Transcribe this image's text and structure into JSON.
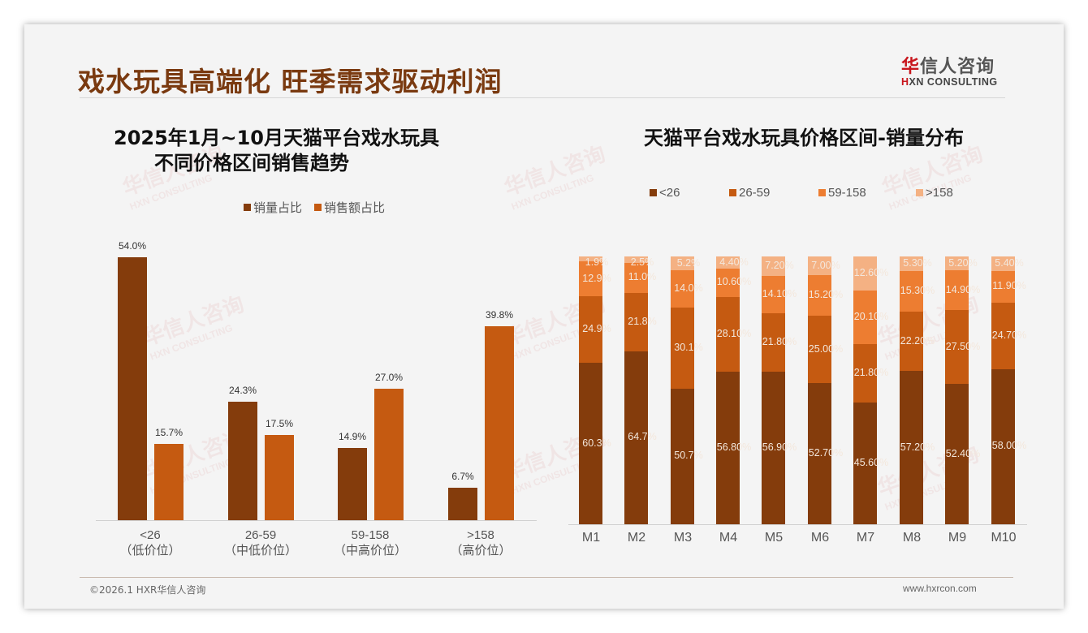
{
  "header": {
    "title": "戏水玩具高端化 旺季需求驱动利润",
    "logo_cn_red": "华",
    "logo_cn_rest": "信人咨询",
    "logo_en_red": "H",
    "logo_en_rest": "XN CONSULTING"
  },
  "watermark": {
    "cn": "华信人咨询",
    "en": "HXN CONSULTING"
  },
  "footer": {
    "copyright": "©2026.1 HXR华信人咨询",
    "website": "www.hxrcon.com"
  },
  "colors": {
    "title": "#7a3a10",
    "lt26": "#843c0c",
    "r26_59": "#c55a11",
    "r59_158": "#ed7d31",
    "gt158": "#f4b183",
    "accent_red": "#c8161d"
  },
  "left_chart": {
    "title_line1": "2025年1月~10月天猫平台戏水玩具",
    "title_line2": "不同价格区间销售趋势",
    "legend": [
      "销量占比",
      "销售额占比"
    ],
    "categories": [
      {
        "range": "<26",
        "sub": "（低价位）",
        "volume_label": "54.0%",
        "sales_label": "15.7%"
      },
      {
        "range": "26-59",
        "sub": "（中低价位）",
        "volume_label": "24.3%",
        "sales_label": "17.5%"
      },
      {
        "range": "59-158",
        "sub": "（中高价位）",
        "volume_label": "14.9%",
        "sales_label": "27.0%"
      },
      {
        "range": ">158",
        "sub": "（高价位）",
        "volume_label": "6.7%",
        "sales_label": "39.8%"
      }
    ]
  },
  "right_chart": {
    "title": "天猫平台戏水玩具价格区间-销量分布",
    "legend": [
      "<26",
      "26-59",
      "59-158",
      ">158"
    ],
    "months": [
      {
        "m": "M1",
        "labels": [
          "60.3%",
          "24.9%",
          "12.9%",
          "1.9%"
        ]
      },
      {
        "m": "M2",
        "labels": [
          "64.7%",
          "21.8%",
          "11.0%",
          "2.5%"
        ]
      },
      {
        "m": "M3",
        "labels": [
          "50.7%",
          "30.1%",
          "14.0%",
          "5.2%"
        ]
      },
      {
        "m": "M4",
        "labels": [
          "56.80%",
          "28.10%",
          "10.60%",
          "4.40%"
        ]
      },
      {
        "m": "M5",
        "labels": [
          "56.90%",
          "21.80%",
          "14.10%",
          "7.20%"
        ]
      },
      {
        "m": "M6",
        "labels": [
          "52.70%",
          "25.00%",
          "15.20%",
          "7.00%"
        ]
      },
      {
        "m": "M7",
        "labels": [
          "45.60%",
          "21.80%",
          "20.10%",
          "12.60%"
        ]
      },
      {
        "m": "M8",
        "labels": [
          "57.20%",
          "22.20%",
          "15.30%",
          "5.30%"
        ]
      },
      {
        "m": "M9",
        "labels": [
          "52.40%",
          "27.50%",
          "14.90%",
          "5.20%"
        ]
      },
      {
        "m": "M10",
        "labels": [
          "58.00%",
          "24.70%",
          "11.90%",
          "5.40%"
        ]
      }
    ]
  },
  "chart_data": [
    {
      "type": "bar",
      "title": "2025年1月~10月天猫平台戏水玩具 不同价格区间销售趋势",
      "categories": [
        "<26（低价位）",
        "26-59（中低价位）",
        "59-158（中高价位）",
        ">158（高价位）"
      ],
      "series": [
        {
          "name": "销量占比",
          "values": [
            54.0,
            24.3,
            14.9,
            6.7
          ],
          "color": "#843c0c"
        },
        {
          "name": "销售额占比",
          "values": [
            15.7,
            17.5,
            27.0,
            39.8
          ],
          "color": "#c55a11"
        }
      ],
      "xlabel": "",
      "ylabel": "",
      "ylim": [
        0,
        60
      ],
      "grid": false,
      "legend_position": "top",
      "unit": "%"
    },
    {
      "type": "bar",
      "stacked": true,
      "title": "天猫平台戏水玩具价格区间-销量分布",
      "categories": [
        "M1",
        "M2",
        "M3",
        "M4",
        "M5",
        "M6",
        "M7",
        "M8",
        "M9",
        "M10"
      ],
      "series": [
        {
          "name": "<26",
          "values": [
            60.3,
            64.7,
            50.7,
            56.8,
            56.9,
            52.7,
            45.6,
            57.2,
            52.4,
            58.0
          ],
          "color": "#843c0c"
        },
        {
          "name": "26-59",
          "values": [
            24.9,
            21.8,
            30.1,
            28.1,
            21.8,
            25.0,
            21.8,
            22.2,
            27.5,
            24.7
          ],
          "color": "#c55a11"
        },
        {
          "name": "59-158",
          "values": [
            12.9,
            11.0,
            14.0,
            10.6,
            14.1,
            15.2,
            20.1,
            15.3,
            14.9,
            11.9
          ],
          "color": "#ed7d31"
        },
        {
          "name": ">158",
          "values": [
            1.9,
            2.5,
            5.2,
            4.4,
            7.2,
            7.0,
            12.6,
            5.3,
            5.2,
            5.4
          ],
          "color": "#f4b183"
        }
      ],
      "xlabel": "",
      "ylabel": "",
      "ylim": [
        0,
        100
      ],
      "grid": false,
      "legend_position": "top",
      "unit": "%"
    }
  ]
}
